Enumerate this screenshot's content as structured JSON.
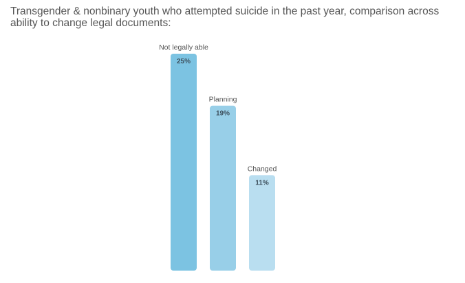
{
  "chart_data": {
    "type": "bar",
    "title": "Transgender & nonbinary youth who attempted suicide in the past year, comparison across ability to change legal documents:",
    "categories": [
      "Not legally able",
      "Planning",
      "Changed"
    ],
    "values": [
      25,
      19,
      11
    ],
    "value_labels": [
      "25%",
      "19%",
      "11%"
    ],
    "unit": "%",
    "colors": [
      "#7cc3e2",
      "#98cfe8",
      "#b9def0"
    ],
    "ylim": [
      0,
      25
    ],
    "grid": false,
    "legend": "none",
    "xlabel": "",
    "ylabel": ""
  }
}
